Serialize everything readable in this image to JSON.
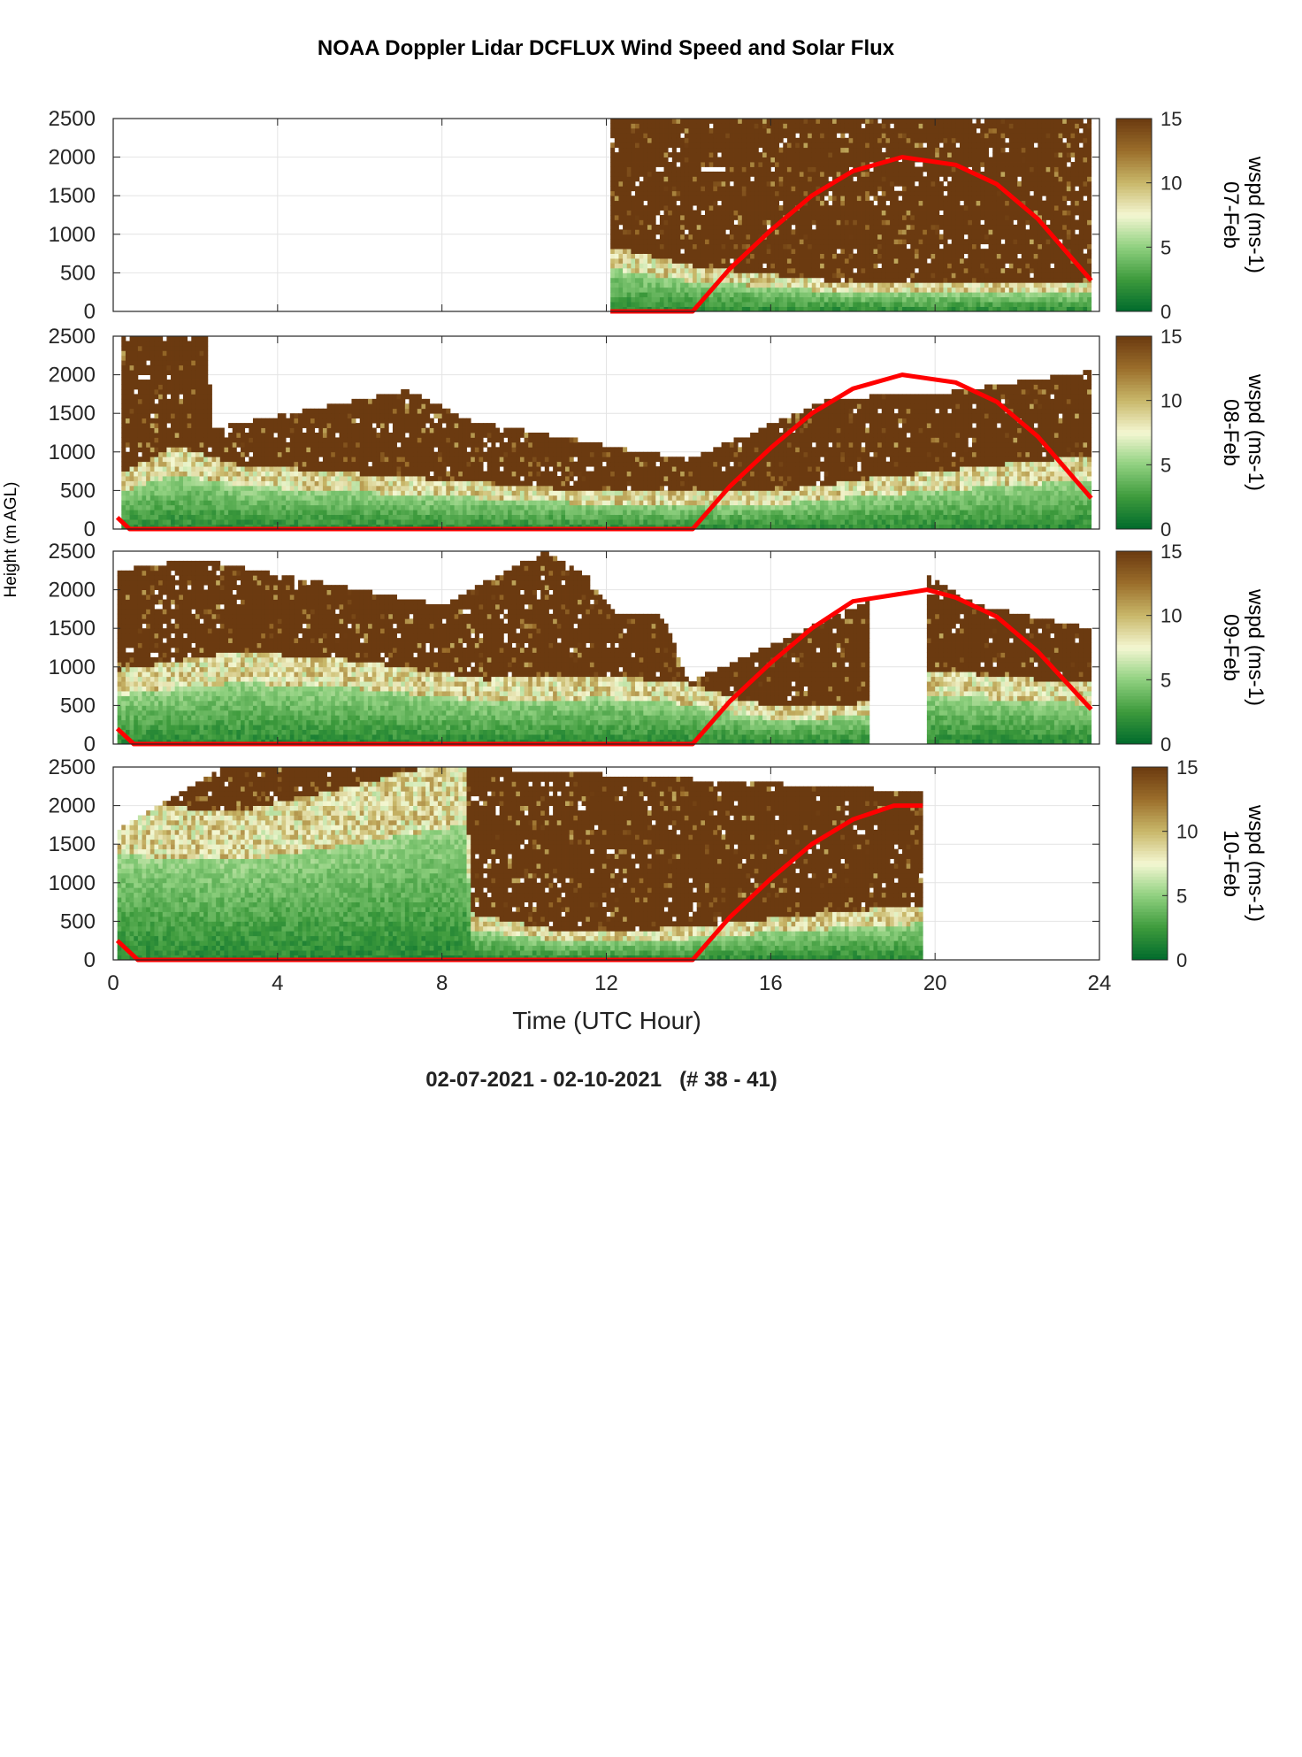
{
  "figure": {
    "title": "NOAA Doppler Lidar DCFLUX Wind Speed and Solar Flux",
    "footer": "02-07-2021 - 02-10-2021   (# 38 - 41)",
    "ylabel": "Height (m AGL)",
    "xlabel": "Time (UTC Hour)"
  },
  "colors": {
    "brown": "#6b3a10",
    "solar": "#ff0000",
    "colormap": [
      "#006a2c",
      "#3d9a3c",
      "#8fd07f",
      "#f4f7d2",
      "#c9b86a",
      "#9b6e2b",
      "#6b3a10"
    ]
  },
  "chart_data": [
    {
      "type": "heatmap",
      "panel": "07-Feb",
      "colorbar_label": "wspd (ms-1)",
      "xlim": [
        0,
        24
      ],
      "ylim": [
        0,
        2500
      ],
      "xticks": [
        0,
        4,
        8,
        12,
        16,
        20,
        24
      ],
      "yticks": [
        0,
        500,
        1000,
        1500,
        2000,
        2500
      ],
      "clim": [
        0,
        15
      ],
      "cticks": [
        0,
        5,
        10,
        15
      ],
      "grid": true,
      "data_extent": [
        [
          12.1,
          23.8
        ]
      ],
      "low_speed_layer_top": [
        [
          12.1,
          700
        ],
        [
          14,
          500
        ],
        [
          18,
          300
        ],
        [
          23.8,
          300
        ]
      ],
      "high_speed_top": 2500,
      "solar_flux_curve": [
        [
          12.1,
          0
        ],
        [
          14.1,
          0
        ],
        [
          15,
          550
        ],
        [
          16,
          1050
        ],
        [
          17,
          1500
        ],
        [
          18,
          1820
        ],
        [
          19.2,
          2000
        ],
        [
          20.5,
          1900
        ],
        [
          21.5,
          1650
        ],
        [
          22.5,
          1200
        ],
        [
          23.8,
          400
        ]
      ]
    },
    {
      "type": "heatmap",
      "panel": "08-Feb",
      "colorbar_label": "wspd (ms-1)",
      "xlim": [
        0,
        24
      ],
      "ylim": [
        0,
        2500
      ],
      "xticks": [
        0,
        4,
        8,
        12,
        16,
        20,
        24
      ],
      "yticks": [
        0,
        500,
        1000,
        1500,
        2000,
        2500
      ],
      "clim": [
        0,
        15
      ],
      "cticks": [
        0,
        5,
        10,
        15
      ],
      "grid": true,
      "data_extent": [
        [
          0.2,
          23.8
        ]
      ],
      "low_speed_layer_top": [
        [
          0.2,
          600
        ],
        [
          1.5,
          900
        ],
        [
          3,
          700
        ],
        [
          6,
          600
        ],
        [
          9,
          500
        ],
        [
          12,
          400
        ],
        [
          14,
          400
        ],
        [
          16,
          400
        ],
        [
          18.5,
          550
        ],
        [
          23.8,
          800
        ]
      ],
      "high_speed_top": [
        [
          0.2,
          2500
        ],
        [
          2.3,
          2500
        ],
        [
          2.4,
          1300
        ],
        [
          7.2,
          1800
        ],
        [
          8.7,
          1400
        ],
        [
          14,
          900
        ],
        [
          17.5,
          1700
        ],
        [
          20,
          1750
        ],
        [
          23.8,
          2050
        ]
      ],
      "solar_flux_curve": [
        [
          0.1,
          150
        ],
        [
          0.4,
          0
        ],
        [
          14.1,
          0
        ],
        [
          15,
          550
        ],
        [
          16,
          1050
        ],
        [
          17,
          1500
        ],
        [
          18,
          1820
        ],
        [
          19.2,
          2000
        ],
        [
          20.5,
          1900
        ],
        [
          21.5,
          1650
        ],
        [
          22.5,
          1200
        ],
        [
          23.8,
          400
        ]
      ]
    },
    {
      "type": "heatmap",
      "panel": "09-Feb",
      "colorbar_label": "wspd (ms-1)",
      "xlim": [
        0,
        24
      ],
      "ylim": [
        0,
        2500
      ],
      "xticks": [
        0,
        4,
        8,
        12,
        16,
        20,
        24
      ],
      "yticks": [
        0,
        500,
        1000,
        1500,
        2000,
        2500
      ],
      "clim": [
        0,
        15
      ],
      "cticks": [
        0,
        5,
        10,
        15
      ],
      "grid": true,
      "data_extent": [
        [
          0.1,
          18.4
        ],
        [
          19.8,
          23.8
        ]
      ],
      "low_speed_layer_top": [
        [
          0.1,
          800
        ],
        [
          3,
          1000
        ],
        [
          6,
          900
        ],
        [
          9,
          700
        ],
        [
          12,
          750
        ],
        [
          14,
          650
        ],
        [
          16,
          400
        ],
        [
          18.4,
          450
        ],
        [
          19.8,
          800
        ],
        [
          23.8,
          650
        ]
      ],
      "high_speed_top": [
        [
          0.1,
          2250
        ],
        [
          2,
          2400
        ],
        [
          5,
          2100
        ],
        [
          8,
          1800
        ],
        [
          10.5,
          2500
        ],
        [
          11.5,
          2200
        ],
        [
          12.2,
          1700
        ],
        [
          13.4,
          1650
        ],
        [
          14,
          800
        ],
        [
          19.8,
          2200
        ],
        [
          21,
          1800
        ],
        [
          23.8,
          1500
        ]
      ],
      "solar_flux_curve": [
        [
          0.1,
          200
        ],
        [
          0.5,
          0
        ],
        [
          14.1,
          0
        ],
        [
          15,
          550
        ],
        [
          16,
          1050
        ],
        [
          17,
          1500
        ],
        [
          18,
          1850
        ],
        [
          19.8,
          2000
        ],
        [
          20.5,
          1900
        ],
        [
          21.5,
          1650
        ],
        [
          22.5,
          1200
        ],
        [
          23.8,
          450
        ]
      ]
    },
    {
      "type": "heatmap",
      "panel": "10-Feb",
      "colorbar_label": "wspd (ms-1)",
      "xlim": [
        0,
        24
      ],
      "ylim": [
        0,
        2500
      ],
      "xticks": [
        0,
        4,
        8,
        12,
        16,
        20,
        24
      ],
      "yticks": [
        0,
        500,
        1000,
        1500,
        2000,
        2500
      ],
      "clim": [
        0,
        15
      ],
      "cticks": [
        0,
        5,
        10,
        15
      ],
      "grid": true,
      "data_extent": [
        [
          0.1,
          19.7
        ]
      ],
      "low_speed_layer_top": [
        [
          0.1,
          1700
        ],
        [
          3,
          1600
        ],
        [
          6,
          1900
        ],
        [
          8.6,
          2200
        ],
        [
          8.7,
          500
        ],
        [
          11,
          300
        ],
        [
          14,
          350
        ],
        [
          16,
          450
        ],
        [
          19.7,
          600
        ]
      ],
      "high_speed_top": [
        [
          0.1,
          1700
        ],
        [
          2.7,
          2500
        ],
        [
          8.6,
          2500
        ],
        [
          19.2,
          2200
        ]
      ],
      "solar_flux_curve": [
        [
          0.1,
          250
        ],
        [
          0.6,
          0
        ],
        [
          14.1,
          0
        ],
        [
          15,
          550
        ],
        [
          16,
          1050
        ],
        [
          17,
          1500
        ],
        [
          18,
          1820
        ],
        [
          19,
          2000
        ],
        [
          19.7,
          2000
        ]
      ]
    }
  ]
}
